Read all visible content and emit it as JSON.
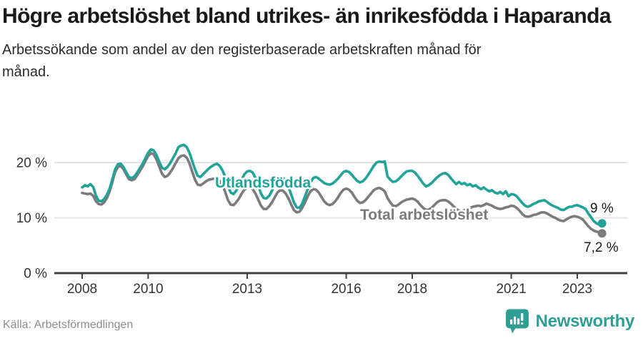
{
  "header": {
    "title": "Högre arbetslöshet bland utrikes- än inrikesfödda i Haparanda",
    "subtitle": "Arbetssökande som andel av den registerbaserade arbetskraften månad för månad."
  },
  "footer": {
    "source": "Källa: Arbetsförmedlingen",
    "brand_name": "Newsworthy"
  },
  "colors": {
    "utlandsfodda": "#20A499",
    "total": "#7B7B7B",
    "grid": "#E3E3E3",
    "axis": "#404040",
    "tick_text": "#333333",
    "annotation_text": "#1a1a1a",
    "brand_teal": "#2f9e95"
  },
  "chart_data": {
    "type": "line",
    "title": "Högre arbetslöshet bland utrikes- än inrikesfödda i Haparanda",
    "subtitle": "Arbetssökande som andel av den registerbaserade arbetskraften månad för månad.",
    "x_start": "2008-01",
    "x_end": "2023-10",
    "frequency": "monthly",
    "ylim": [
      0,
      24
    ],
    "grid": "horizontal",
    "y_ticks": [
      0,
      10,
      20
    ],
    "y_tick_labels": [
      "0 %",
      "10 %",
      "20 %"
    ],
    "x_ticks": [
      2008,
      2010,
      2013,
      2016,
      2018,
      2021,
      2023
    ],
    "x_tick_labels": [
      "2008",
      "2010",
      "2013",
      "2016",
      "2018",
      "2021",
      "2023"
    ],
    "series": [
      {
        "name": "Total arbetslöshet",
        "inline_label": "Total arbetslöshet",
        "end_label": "7,2 %",
        "values": [
          14.5,
          14.4,
          14.3,
          14.4,
          14.0,
          13.0,
          12.5,
          12.4,
          12.8,
          13.6,
          14.8,
          16.5,
          18.3,
          19.2,
          19.4,
          18.8,
          17.9,
          17.0,
          16.8,
          17.0,
          17.7,
          18.5,
          19.3,
          20.3,
          21.2,
          21.7,
          21.5,
          20.6,
          19.3,
          18.0,
          17.4,
          17.6,
          18.2,
          19.0,
          19.9,
          20.8,
          21.2,
          21.3,
          20.9,
          19.9,
          18.4,
          16.9,
          16.0,
          15.9,
          16.2,
          16.6,
          16.9,
          17.0,
          17.1,
          17.1,
          16.7,
          15.9,
          14.7,
          13.2,
          12.4,
          12.3,
          12.8,
          13.5,
          14.4,
          15.1,
          15.4,
          15.5,
          15.2,
          14.4,
          13.3,
          12.2,
          11.6,
          11.6,
          12.1,
          12.8,
          13.7,
          14.6,
          15.0,
          14.9,
          14.4,
          13.5,
          12.4,
          11.4,
          11.0,
          11.1,
          11.8,
          12.8,
          13.9,
          14.8,
          15.2,
          15.1,
          14.6,
          13.8,
          13.0,
          12.5,
          12.3,
          12.5,
          13.0,
          13.7,
          14.5,
          15.1,
          15.3,
          15.1,
          14.6,
          13.8,
          13.1,
          12.7,
          12.8,
          13.2,
          13.8,
          14.4,
          15.0,
          15.3,
          15.4,
          15.2,
          14.8,
          13.6,
          12.8,
          12.2,
          12.1,
          12.4,
          12.8,
          13.1,
          13.3,
          13.4,
          13.5,
          13.3,
          12.9,
          12.3,
          11.8,
          11.4,
          11.5,
          11.8,
          12.3,
          12.8,
          13.1,
          13.2,
          13.2,
          13.0,
          12.6,
          12.1,
          11.6,
          11.3,
          11.2,
          11.4,
          11.6,
          11.8,
          12.0,
          12.1,
          12.2,
          12.1,
          12.3,
          12.6,
          12.4,
          12.2,
          11.9,
          11.7,
          11.6,
          11.7,
          11.9,
          12.0,
          12.2,
          12.1,
          11.8,
          11.3,
          10.7,
          10.3,
          10.2,
          10.3,
          10.5,
          10.6,
          10.8,
          11.0,
          11.0,
          10.8,
          10.5,
          10.2,
          10.0,
          9.7,
          9.5,
          9.4,
          9.7,
          10.0,
          10.2,
          10.3,
          10.2,
          10.0,
          9.7,
          9.1,
          8.5,
          8.0,
          7.7,
          7.5,
          7.4,
          7.2
        ]
      },
      {
        "name": "Utlandsfödda",
        "inline_label": "Utlandsfödda",
        "end_label": "9 %",
        "values": [
          15.5,
          15.9,
          15.7,
          16.1,
          15.6,
          14.0,
          13.1,
          13.0,
          13.4,
          14.2,
          15.3,
          17.0,
          18.8,
          19.7,
          19.8,
          19.2,
          18.3,
          17.4,
          17.2,
          17.5,
          18.2,
          19.0,
          19.8,
          20.8,
          21.8,
          22.4,
          22.2,
          21.4,
          20.2,
          19.1,
          18.8,
          19.2,
          19.9,
          20.8,
          21.7,
          22.8,
          23.1,
          23.2,
          22.8,
          21.8,
          20.3,
          18.8,
          17.6,
          17.4,
          17.9,
          18.4,
          18.9,
          19.3,
          19.6,
          19.8,
          19.4,
          18.6,
          17.4,
          15.8,
          14.6,
          14.3,
          14.9,
          15.8,
          16.9,
          17.9,
          18.4,
          18.5,
          18.2,
          17.2,
          15.9,
          14.4,
          13.6,
          13.5,
          14.0,
          14.9,
          15.9,
          16.9,
          17.4,
          17.3,
          16.7,
          15.6,
          14.2,
          12.8,
          11.9,
          11.8,
          12.6,
          13.9,
          15.2,
          16.4,
          17.2,
          17.4,
          17.1,
          16.7,
          16.3,
          16.1,
          16.0,
          16.2,
          16.6,
          17.1,
          17.7,
          18.3,
          18.5,
          18.3,
          17.8,
          17.2,
          16.7,
          16.4,
          16.6,
          17.1,
          17.8,
          18.6,
          19.4,
          20.0,
          20.2,
          20.1,
          20.2,
          17.5,
          16.9,
          16.5,
          16.6,
          17.0,
          17.5,
          18.0,
          18.4,
          18.5,
          18.5,
          18.2,
          17.6,
          16.9,
          16.2,
          15.7,
          15.9,
          16.3,
          16.8,
          17.3,
          17.7,
          18.0,
          18.1,
          17.8,
          17.2,
          16.6,
          16.1,
          16.5,
          16.1,
          16.3,
          15.9,
          16.1,
          15.7,
          15.9,
          15.5,
          15.2,
          15.5,
          15.1,
          14.8,
          15.0,
          14.6,
          14.4,
          14.7,
          14.3,
          14.8,
          13.9,
          14.3,
          14.2,
          13.9,
          13.3,
          12.7,
          12.2,
          12.0,
          12.2,
          12.5,
          12.7,
          13.0,
          13.1,
          13.2,
          12.9,
          12.5,
          12.2,
          12.0,
          11.8,
          11.5,
          11.4,
          11.7,
          12.0,
          12.0,
          12.2,
          12.3,
          12.1,
          11.9,
          11.6,
          10.8,
          10.1,
          9.4,
          9.0,
          8.8,
          9.0
        ]
      }
    ],
    "legend_position": "inline-labels",
    "annotations": [
      {
        "text": "9 %",
        "series": "Utlandsfödda"
      },
      {
        "text": "7,2 %",
        "series": "Total arbetslöshet"
      }
    ]
  }
}
